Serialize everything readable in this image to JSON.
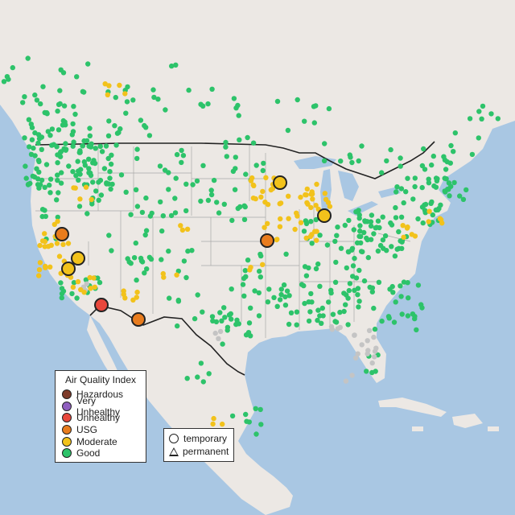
{
  "legend": {
    "title": "Air Quality Index",
    "categories": [
      {
        "label": "Hazardous",
        "color": "#7e3b2a"
      },
      {
        "label": "Very Unhealthy",
        "color": "#8f5fbf"
      },
      {
        "label": "Unhealthy",
        "color": "#e8473c"
      },
      {
        "label": "USG",
        "color": "#e87c1e"
      },
      {
        "label": "Moderate",
        "color": "#f2c21b"
      },
      {
        "label": "Good",
        "color": "#2dc36a"
      }
    ]
  },
  "monitor_types": {
    "temporary": "temporary",
    "permanent": "permanent"
  },
  "map_colors": {
    "water": "#a9c7e3",
    "land": "#ece8e4",
    "no_data_site": "#c4c4c4"
  }
}
